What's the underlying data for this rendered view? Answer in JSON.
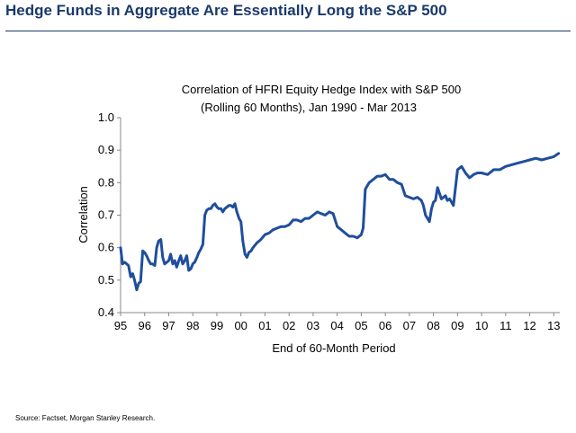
{
  "page": {
    "title": "Hedge Funds in Aggregate Are Essentially Long the S&P 500",
    "source": "Source: Factset, Morgan Stanley Research.",
    "accent_color": "#1a3a6b"
  },
  "chart_data": {
    "type": "line",
    "title": "Correlation of HFRI Equity Hedge Index with S&P 500",
    "subtitle": "(Rolling 60 Months), Jan 1990 - Mar 2013",
    "xlabel": "End of 60-Month Period",
    "ylabel": "Correlation",
    "ylim": [
      0.4,
      1.0
    ],
    "yticks": [
      0.4,
      0.5,
      0.6,
      0.7,
      0.8,
      0.9,
      1.0
    ],
    "ytick_labels": [
      "0.4",
      "0.5",
      "0.6",
      "0.7",
      "0.8",
      "0.9",
      "1.0"
    ],
    "xlim": [
      1995,
      2013.25
    ],
    "xticks": [
      1995,
      1996,
      1997,
      1998,
      1999,
      2000,
      2001,
      2002,
      2003,
      2004,
      2005,
      2006,
      2007,
      2008,
      2009,
      2010,
      2011,
      2012,
      2013
    ],
    "xtick_labels": [
      "95",
      "96",
      "97",
      "98",
      "99",
      "00",
      "01",
      "02",
      "03",
      "04",
      "05",
      "06",
      "07",
      "08",
      "09",
      "10",
      "11",
      "12",
      "13"
    ],
    "grid": false,
    "line_color": "#1f4e9c",
    "series": [
      {
        "x": [
          1995.0,
          1995.08,
          1995.17,
          1995.25,
          1995.33,
          1995.42,
          1995.5,
          1995.58,
          1995.67,
          1995.75,
          1995.83,
          1995.92,
          1996.0,
          1996.08,
          1996.17,
          1996.25,
          1996.33,
          1996.42,
          1996.5,
          1996.58,
          1996.67,
          1996.75,
          1996.83,
          1996.92,
          1997.0,
          1997.08,
          1997.17,
          1997.25,
          1997.33,
          1997.42,
          1997.5,
          1997.58,
          1997.67,
          1997.75,
          1997.83,
          1997.92,
          1998.0,
          1998.08,
          1998.17,
          1998.25,
          1998.33,
          1998.42,
          1998.5,
          1998.58,
          1998.67,
          1998.75,
          1998.83,
          1998.92,
          1999.0,
          1999.08,
          1999.17,
          1999.25,
          1999.33,
          1999.42,
          1999.5,
          1999.58,
          1999.67,
          1999.75,
          1999.83,
          1999.92,
          2000.0,
          2000.08,
          2000.17,
          2000.25,
          2000.33,
          2000.42,
          2000.5,
          2000.67,
          2000.83,
          2001.0,
          2001.17,
          2001.33,
          2001.5,
          2001.67,
          2001.83,
          2002.0,
          2002.17,
          2002.33,
          2002.5,
          2002.67,
          2002.83,
          2003.0,
          2003.17,
          2003.33,
          2003.5,
          2003.67,
          2003.83,
          2004.0,
          2004.17,
          2004.33,
          2004.5,
          2004.67,
          2004.83,
          2005.0,
          2005.08,
          2005.17,
          2005.33,
          2005.5,
          2005.67,
          2005.83,
          2006.0,
          2006.17,
          2006.33,
          2006.5,
          2006.67,
          2006.83,
          2007.0,
          2007.17,
          2007.33,
          2007.5,
          2007.58,
          2007.67,
          2007.83,
          2007.92,
          2008.0,
          2008.08,
          2008.17,
          2008.33,
          2008.5,
          2008.58,
          2008.67,
          2008.75,
          2008.83,
          2009.0,
          2009.17,
          2009.33,
          2009.5,
          2009.67,
          2009.83,
          2010.0,
          2010.25,
          2010.5,
          2010.75,
          2011.0,
          2011.25,
          2011.5,
          2011.75,
          2012.0,
          2012.25,
          2012.5,
          2012.75,
          2013.0,
          2013.2
        ],
        "y": [
          0.6,
          0.55,
          0.555,
          0.55,
          0.545,
          0.51,
          0.52,
          0.5,
          0.47,
          0.49,
          0.495,
          0.59,
          0.585,
          0.575,
          0.56,
          0.55,
          0.55,
          0.545,
          0.6,
          0.62,
          0.625,
          0.57,
          0.55,
          0.555,
          0.56,
          0.58,
          0.55,
          0.56,
          0.54,
          0.56,
          0.575,
          0.55,
          0.56,
          0.575,
          0.53,
          0.535,
          0.55,
          0.555,
          0.57,
          0.585,
          0.595,
          0.61,
          0.7,
          0.715,
          0.72,
          0.72,
          0.73,
          0.735,
          0.725,
          0.72,
          0.72,
          0.71,
          0.72,
          0.725,
          0.73,
          0.73,
          0.725,
          0.735,
          0.71,
          0.69,
          0.68,
          0.62,
          0.58,
          0.57,
          0.585,
          0.59,
          0.6,
          0.615,
          0.625,
          0.64,
          0.645,
          0.655,
          0.66,
          0.665,
          0.665,
          0.67,
          0.685,
          0.685,
          0.68,
          0.69,
          0.69,
          0.7,
          0.71,
          0.705,
          0.7,
          0.71,
          0.705,
          0.665,
          0.655,
          0.645,
          0.635,
          0.635,
          0.63,
          0.64,
          0.66,
          0.78,
          0.8,
          0.81,
          0.82,
          0.82,
          0.825,
          0.81,
          0.81,
          0.8,
          0.795,
          0.76,
          0.755,
          0.75,
          0.755,
          0.745,
          0.73,
          0.7,
          0.68,
          0.72,
          0.74,
          0.745,
          0.785,
          0.75,
          0.76,
          0.745,
          0.75,
          0.74,
          0.73,
          0.84,
          0.85,
          0.83,
          0.815,
          0.825,
          0.83,
          0.83,
          0.825,
          0.84,
          0.84,
          0.85,
          0.855,
          0.86,
          0.865,
          0.87,
          0.875,
          0.87,
          0.875,
          0.88,
          0.89
        ]
      }
    ]
  }
}
